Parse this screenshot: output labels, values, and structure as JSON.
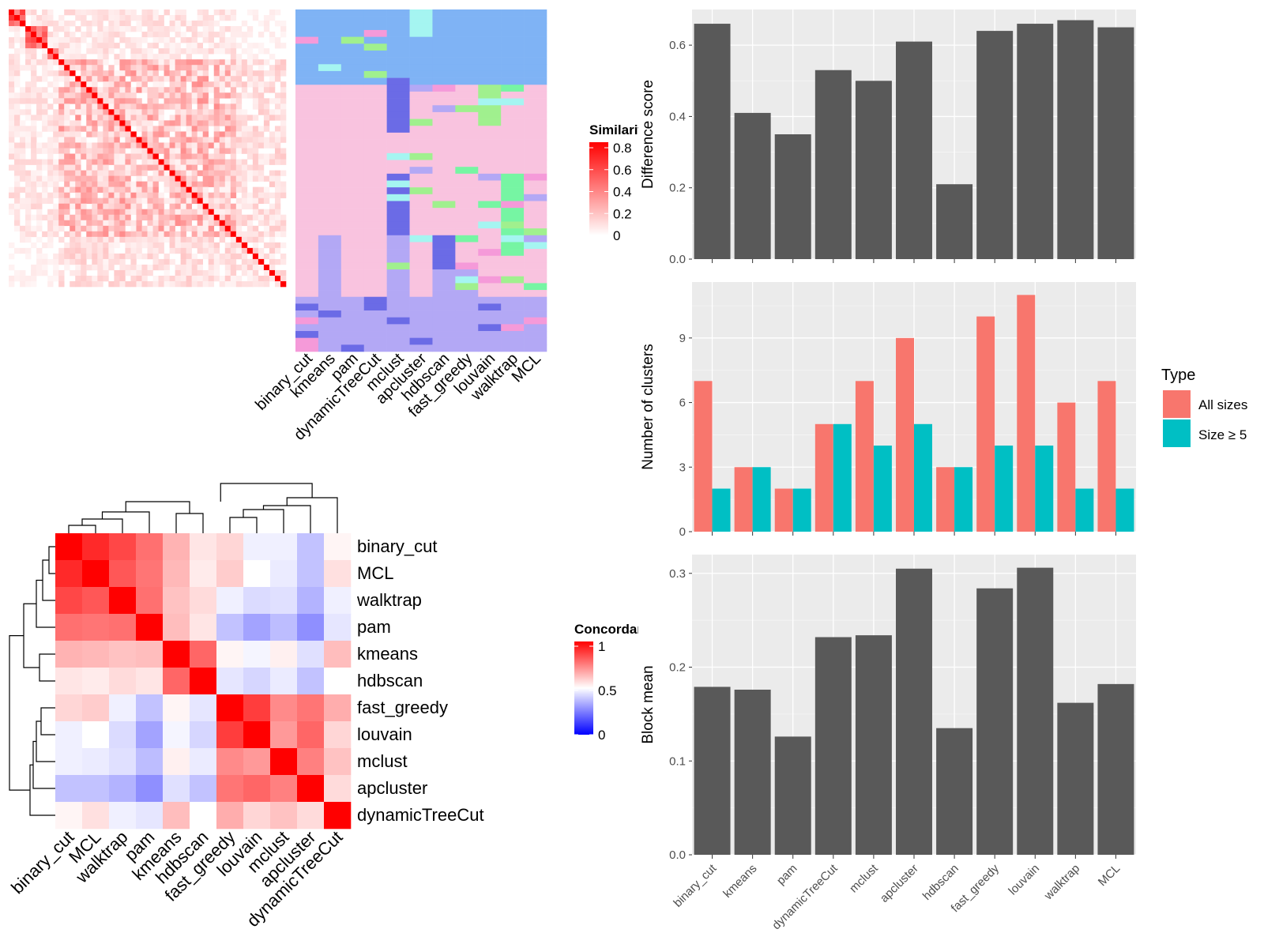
{
  "methods": [
    "binary_cut",
    "kmeans",
    "pam",
    "dynamicTreeCut",
    "mclust",
    "apcluster",
    "hdbscan",
    "fast_greedy",
    "louvain",
    "walktrap",
    "MCL"
  ],
  "similarity_heatmap": {
    "legend_title": "Similarity",
    "legend_ticks": [
      "0",
      "0.2",
      "0.4",
      "0.6",
      "0.8"
    ],
    "n_terms": 50,
    "diagonal_color": "#ff0000",
    "low_color": "#ffffff"
  },
  "cluster_panel": {
    "colors": [
      "#7fb3f5",
      "#f9c3df",
      "#b3a8f5",
      "#6b6be6",
      "#a0f08e",
      "#a5f5f1",
      "#f59ad9",
      "#76f5a3"
    ]
  },
  "concordance_heatmap": {
    "legend_title": "Concordance",
    "legend_ticks": [
      "1",
      "0.5",
      "0"
    ],
    "order": [
      "binary_cut",
      "MCL",
      "walktrap",
      "pam",
      "kmeans",
      "hdbscan",
      "fast_greedy",
      "louvain",
      "mclust",
      "apcluster",
      "dynamicTreeCut"
    ],
    "colors": {
      "high": "#ff0000",
      "mid": "#ffffff",
      "low": "#0000ff"
    }
  },
  "chart_data": [
    {
      "type": "bar",
      "ylabel": "Difference score",
      "categories": [
        "binary_cut",
        "kmeans",
        "pam",
        "dynamicTreeCut",
        "mclust",
        "apcluster",
        "hdbscan",
        "fast_greedy",
        "louvain",
        "walktrap",
        "MCL"
      ],
      "values": [
        0.66,
        0.41,
        0.35,
        0.53,
        0.5,
        0.61,
        0.21,
        0.64,
        0.66,
        0.67,
        0.65
      ],
      "ylim": [
        0,
        0.7
      ],
      "ticks": [
        "0.0",
        "0.2",
        "0.4",
        "0.6"
      ],
      "color": "#595959"
    },
    {
      "type": "bar",
      "ylabel": "Number of clusters",
      "categories": [
        "binary_cut",
        "kmeans",
        "pam",
        "dynamicTreeCut",
        "mclust",
        "apcluster",
        "hdbscan",
        "fast_greedy",
        "louvain",
        "walktrap",
        "MCL"
      ],
      "series": [
        {
          "name": "All sizes",
          "values": [
            7,
            3,
            2,
            5,
            7,
            9,
            3,
            10,
            11,
            6,
            7
          ],
          "color": "#f8766d"
        },
        {
          "name": "Size ≥ 5",
          "values": [
            2,
            3,
            2,
            5,
            4,
            5,
            3,
            4,
            4,
            2,
            2
          ],
          "color": "#00bfc4"
        }
      ],
      "ylim": [
        0,
        11.6
      ],
      "ticks": [
        "0",
        "3",
        "6",
        "9"
      ],
      "legend_title": "Type",
      "legend_position": "right"
    },
    {
      "type": "bar",
      "ylabel": "Block mean",
      "categories": [
        "binary_cut",
        "kmeans",
        "pam",
        "dynamicTreeCut",
        "mclust",
        "apcluster",
        "hdbscan",
        "fast_greedy",
        "louvain",
        "walktrap",
        "MCL"
      ],
      "values": [
        0.179,
        0.176,
        0.126,
        0.232,
        0.234,
        0.305,
        0.135,
        0.284,
        0.306,
        0.162,
        0.182
      ],
      "ylim": [
        0,
        0.32
      ],
      "ticks": [
        "0.0",
        "0.1",
        "0.2",
        "0.3"
      ],
      "color": "#595959"
    }
  ]
}
